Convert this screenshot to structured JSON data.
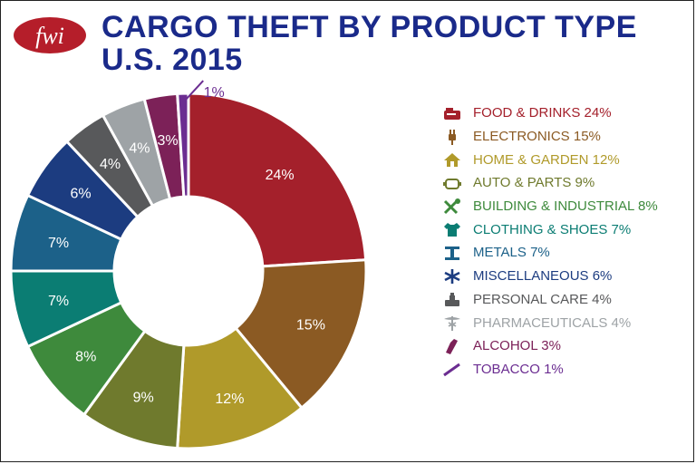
{
  "brand": {
    "logo_text": "fwi",
    "color": "#b51e2a"
  },
  "title": {
    "line1": "CARGO THEFT BY PRODUCT TYPE",
    "line2": "U.S. 2015",
    "color": "#1a2a8a"
  },
  "chart_data": {
    "type": "pie",
    "variant": "donut",
    "title": "CARGO THEFT BY PRODUCT TYPE U.S. 2015",
    "unit": "%",
    "legend_position": "right",
    "slices": [
      {
        "label": "FOOD & DRINKS",
        "value": 24,
        "display": "24%",
        "legend": "FOOD & DRINKS 24%",
        "color": "#a4202b",
        "label_color": "#ffffff",
        "icon": "food-drinks-icon"
      },
      {
        "label": "ELECTRONICS",
        "value": 15,
        "display": "15%",
        "legend": "ELECTRONICS 15%",
        "color": "#8b5a23",
        "label_color": "#ffffff",
        "icon": "electronics-plug-icon"
      },
      {
        "label": "HOME & GARDEN",
        "value": 12,
        "display": "12%",
        "legend": "HOME & GARDEN 12%",
        "color": "#b09a2a",
        "label_color": "#ffffff",
        "icon": "home-garden-icon"
      },
      {
        "label": "AUTO & PARTS",
        "value": 9,
        "display": "9%",
        "legend": "AUTO & PARTS 9%",
        "color": "#6f7a2d",
        "label_color": "#ffffff",
        "icon": "auto-parts-icon"
      },
      {
        "label": "BUILDING & INDUSTRIAL",
        "value": 8,
        "display": "8%",
        "legend": "BUILDING & INDUSTRIAL 8%",
        "color": "#3e8a3c",
        "label_color": "#ffffff",
        "icon": "tools-icon"
      },
      {
        "label": "CLOTHING & SHOES",
        "value": 7,
        "display": "7%",
        "legend": "CLOTHING & SHOES 7%",
        "color": "#0b7d73",
        "label_color": "#ffffff",
        "icon": "shirt-icon"
      },
      {
        "label": "METALS",
        "value": 7,
        "display": "7%",
        "legend": "METALS 7%",
        "color": "#1c6189",
        "label_color": "#ffffff",
        "icon": "ibeam-icon"
      },
      {
        "label": "MISCELLANEOUS",
        "value": 6,
        "display": "6%",
        "legend": "MISCELLANEOUS 6%",
        "color": "#1c3c80",
        "label_color": "#ffffff",
        "icon": "asterisk-icon"
      },
      {
        "label": "PERSONAL CARE",
        "value": 4,
        "display": "4%",
        "legend": "PERSONAL CARE 4%",
        "color": "#58595b",
        "label_color": "#ffffff",
        "icon": "personal-care-icon"
      },
      {
        "label": "PHARMACEUTICALS",
        "value": 4,
        "display": "4%",
        "legend": "PHARMACEUTICALS 4%",
        "color": "#9ea3a6",
        "label_color": "#ffffff",
        "icon": "caduceus-icon"
      },
      {
        "label": "ALCOHOL",
        "value": 3,
        "display": "3%",
        "legend": "ALCOHOL 3%",
        "color": "#7c2158",
        "label_color": "#ffffff",
        "icon": "bottle-icon"
      },
      {
        "label": "TOBACCO",
        "value": 1,
        "display": "1%",
        "legend": "TOBACCO 1%",
        "color": "#6b2d91",
        "label_color": "#6b2d91",
        "icon": "cigarette-icon",
        "label_outside": true
      }
    ]
  }
}
